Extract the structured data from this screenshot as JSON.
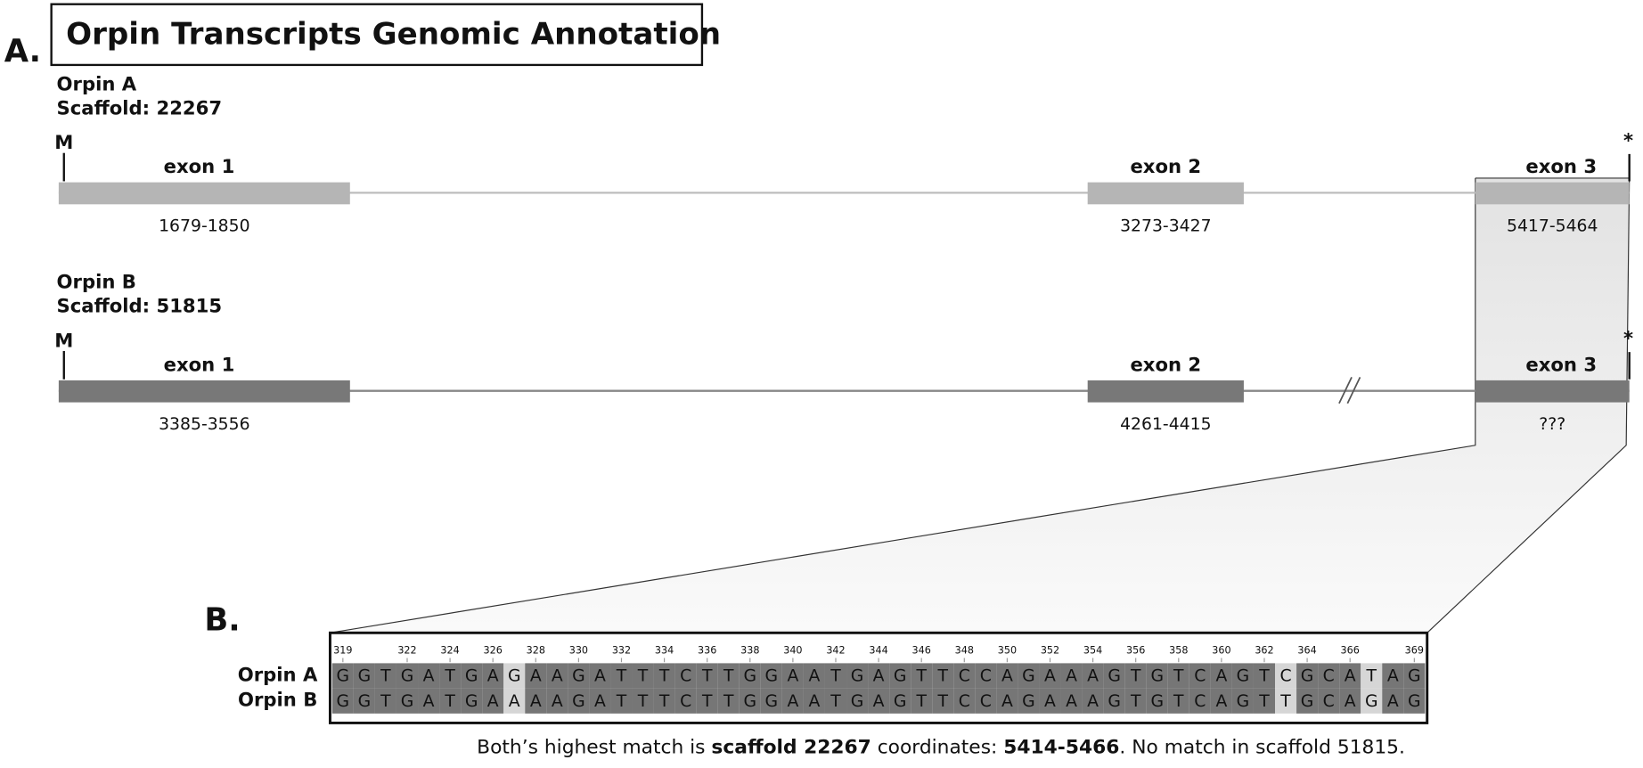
{
  "title": "Orpin Transcripts Genomic Annotation",
  "panel_a_label": "A.",
  "panel_b_label": "B.",
  "transcripts": [
    {
      "name": "Orpin A",
      "scaffold": "Scaffold: 22267",
      "start_marker": "M",
      "stop_marker": "*",
      "exons": [
        {
          "label": "exon 1",
          "coords": "1679-1850"
        },
        {
          "label": "exon 2",
          "coords": "3273-3427"
        },
        {
          "label": "exon 3",
          "coords": "5417-5464"
        }
      ]
    },
    {
      "name": "Orpin B",
      "scaffold": "Scaffold: 51815",
      "start_marker": "M",
      "stop_marker": "*",
      "exons": [
        {
          "label": "exon 1",
          "coords": "3385-3556"
        },
        {
          "label": "exon 2",
          "coords": "4261-4415"
        },
        {
          "label": "exon 3",
          "coords": "???"
        }
      ]
    }
  ],
  "alignment": {
    "start": 319,
    "ticks": [
      319,
      322,
      324,
      326,
      328,
      330,
      332,
      334,
      336,
      338,
      340,
      342,
      344,
      346,
      348,
      350,
      352,
      354,
      356,
      358,
      360,
      362,
      364,
      366,
      369
    ],
    "rows": [
      {
        "name": "Orpin A",
        "sequence": "GGTGATGAGAAGATTTCTTGGAATGAGTTCCAGAAAGTGTCAGTCGCATAG"
      },
      {
        "name": "Orpin B",
        "sequence": "GGTGATGAAAAGATTTCTTGGAATGAGTTCCAGAAAGTGTCAGTTGCAGAG"
      }
    ]
  },
  "caption": [
    {
      "text": "Both’s highest match is ",
      "bold": false
    },
    {
      "text": "scaffold 22267",
      "bold": true
    },
    {
      "text": " coordinates: ",
      "bold": false
    },
    {
      "text": "5414-5466",
      "bold": true
    },
    {
      "text": ". No match in scaffold 51815.",
      "bold": false
    }
  ]
}
